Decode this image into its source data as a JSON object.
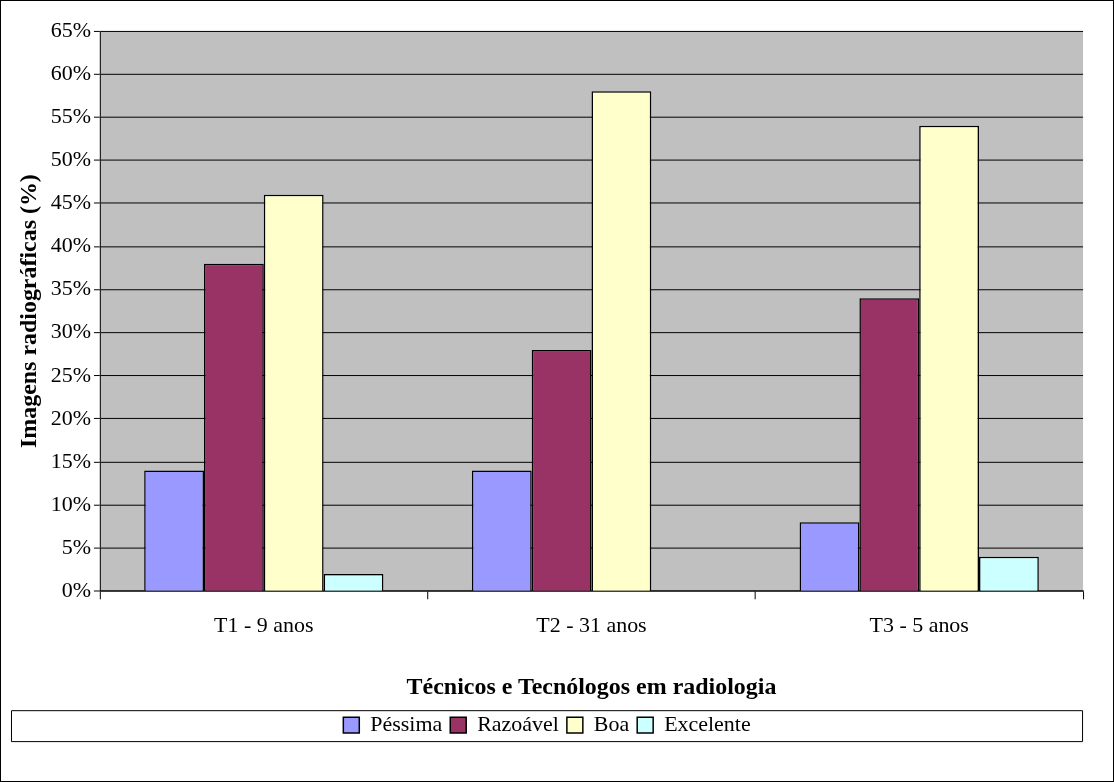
{
  "chart_data": {
    "type": "bar",
    "xlabel": "Técnicos e Tecnólogos em radiologia",
    "ylabel": "Imagens radiográficas (%)",
    "categories": [
      "T1 - 9 anos",
      "T2 - 31 anos",
      "T3 - 5 anos"
    ],
    "series": [
      {
        "name": "Péssima",
        "color": "#9999ff",
        "values": [
          14,
          14,
          8
        ]
      },
      {
        "name": "Razoável",
        "color": "#993366",
        "values": [
          38,
          28,
          34
        ]
      },
      {
        "name": "Boa",
        "color": "#ffffcc",
        "values": [
          46,
          58,
          54
        ]
      },
      {
        "name": "Excelente",
        "color": "#ccffff",
        "values": [
          2,
          0,
          4
        ]
      }
    ],
    "ylim": [
      0,
      65
    ],
    "yticks": [
      {
        "value": 0,
        "label": "0%"
      },
      {
        "value": 5,
        "label": "5%"
      },
      {
        "value": 10,
        "label": "10%"
      },
      {
        "value": 15,
        "label": "15%"
      },
      {
        "value": 20,
        "label": "20%"
      },
      {
        "value": 25,
        "label": "25%"
      },
      {
        "value": 30,
        "label": "30%"
      },
      {
        "value": 35,
        "label": "35%"
      },
      {
        "value": 40,
        "label": "40%"
      },
      {
        "value": 45,
        "label": "45%"
      },
      {
        "value": 50,
        "label": "50%"
      },
      {
        "value": 55,
        "label": "55%"
      },
      {
        "value": 60,
        "label": "60%"
      },
      {
        "value": 65,
        "label": "65%"
      }
    ],
    "grid": "y",
    "legend": "bottom"
  }
}
